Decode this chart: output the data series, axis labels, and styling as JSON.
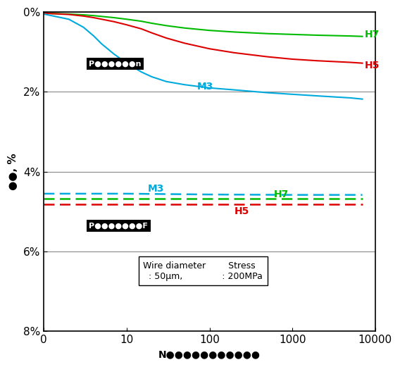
{
  "xlabel_text": "N●●●●●●●●●●●",
  "ylabel_text": "●●, %",
  "annotation_solid": "P●●●●●●n",
  "annotation_dashed": "P●●●●●●●F",
  "colors": {
    "H7": "#00bb00",
    "H5": "#dd0000",
    "M3": "#00aadd"
  },
  "x_solid_H7": [
    1,
    2,
    3,
    4,
    5,
    7,
    10,
    15,
    20,
    30,
    50,
    100,
    200,
    500,
    1000,
    2000,
    5000,
    7000
  ],
  "y_solid_H7": [
    0.03,
    0.05,
    0.07,
    0.09,
    0.11,
    0.14,
    0.18,
    0.23,
    0.28,
    0.34,
    0.4,
    0.46,
    0.5,
    0.54,
    0.56,
    0.58,
    0.6,
    0.61
  ],
  "x_solid_H5": [
    1,
    2,
    3,
    4,
    5,
    7,
    10,
    15,
    20,
    30,
    50,
    100,
    200,
    500,
    1000,
    2000,
    5000,
    7000
  ],
  "y_solid_H5": [
    0.03,
    0.06,
    0.1,
    0.14,
    0.18,
    0.24,
    0.32,
    0.42,
    0.52,
    0.65,
    0.78,
    0.92,
    1.02,
    1.12,
    1.18,
    1.22,
    1.26,
    1.28
  ],
  "x_solid_M3": [
    1,
    2,
    3,
    4,
    5,
    7,
    10,
    15,
    20,
    30,
    50,
    100,
    200,
    500,
    1000,
    2000,
    5000,
    7000
  ],
  "y_solid_M3": [
    0.05,
    0.18,
    0.38,
    0.6,
    0.8,
    1.05,
    1.28,
    1.5,
    1.62,
    1.74,
    1.82,
    1.9,
    1.95,
    2.02,
    2.06,
    2.1,
    2.15,
    2.18
  ],
  "x_dashed": [
    1,
    10,
    100,
    1000,
    7000
  ],
  "y_dashed_M3": [
    4.55,
    4.55,
    4.57,
    4.58,
    4.58
  ],
  "y_dashed_H7": [
    4.68,
    4.68,
    4.68,
    4.68,
    4.68
  ],
  "y_dashed_H5": [
    4.82,
    4.82,
    4.82,
    4.82,
    4.82
  ],
  "ylim": [
    0,
    8
  ],
  "yticks": [
    0,
    2,
    4,
    6,
    8
  ],
  "ytick_labels": [
    "0%",
    "2%",
    "4%",
    "6%",
    "8%"
  ],
  "xtick_labels": [
    "0",
    "10",
    "100",
    "1000",
    "10000"
  ],
  "xlim_left": 1,
  "xlim_right": 10000,
  "background_color": "#ffffff",
  "grid_color": "#888888",
  "frame_color": "#000000"
}
